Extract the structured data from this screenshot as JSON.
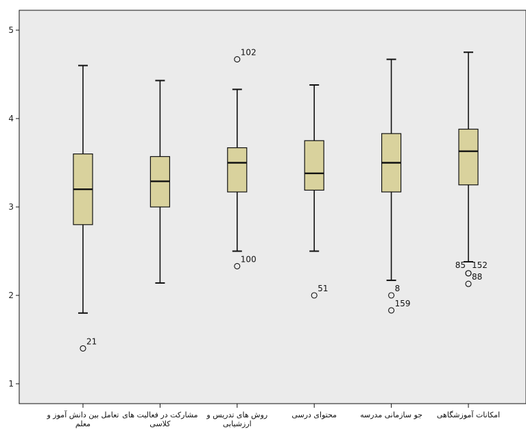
{
  "colors": {
    "plot_background": "#ebebeb",
    "box_fill": "#d9d29d",
    "line": "#111111"
  },
  "chart_data": {
    "type": "boxplot",
    "ylim": [
      0.8,
      5.2
    ],
    "yticks": [
      1,
      2,
      3,
      4,
      5
    ],
    "grid": false,
    "categories": [
      {
        "label_lines": [
          "تعامل بین دانش آموز و",
          "معلم"
        ],
        "min": 1.8,
        "q1": 2.8,
        "median": 3.2,
        "q3": 3.6,
        "max": 4.6,
        "outliers": [
          {
            "value": 1.4,
            "label": "21"
          }
        ]
      },
      {
        "label_lines": [
          "مشارکت در فعالیت های",
          "کلاسی"
        ],
        "min": 2.14,
        "q1": 3.0,
        "median": 3.29,
        "q3": 3.57,
        "max": 4.43,
        "outliers": []
      },
      {
        "label_lines": [
          "روش های تدریس و",
          "ارزشیابی"
        ],
        "min": 2.5,
        "q1": 3.17,
        "median": 3.5,
        "q3": 3.67,
        "max": 4.33,
        "outliers": [
          {
            "value": 4.67,
            "label": "102"
          },
          {
            "value": 2.33,
            "label": "100"
          }
        ]
      },
      {
        "label_lines": [
          "محتوای درسی"
        ],
        "min": 2.5,
        "q1": 3.19,
        "median": 3.38,
        "q3": 3.75,
        "max": 4.38,
        "outliers": [
          {
            "value": 2.0,
            "label": "51"
          }
        ]
      },
      {
        "label_lines": [
          "جو سازمانی مدرسه"
        ],
        "min": 2.17,
        "q1": 3.17,
        "median": 3.5,
        "q3": 3.83,
        "max": 4.67,
        "outliers": [
          {
            "value": 2.0,
            "label": "8"
          },
          {
            "value": 1.83,
            "label": "159"
          }
        ]
      },
      {
        "label_lines": [
          "امکانات آموزشگاهی"
        ],
        "min": 2.38,
        "q1": 3.25,
        "median": 3.63,
        "q3": 3.88,
        "max": 4.75,
        "outliers": [
          {
            "value": 2.25,
            "label": "85",
            "side": "left"
          },
          {
            "value": 2.25,
            "label": "152",
            "side": "right"
          },
          {
            "value": 2.13,
            "label": "88"
          }
        ]
      }
    ]
  }
}
